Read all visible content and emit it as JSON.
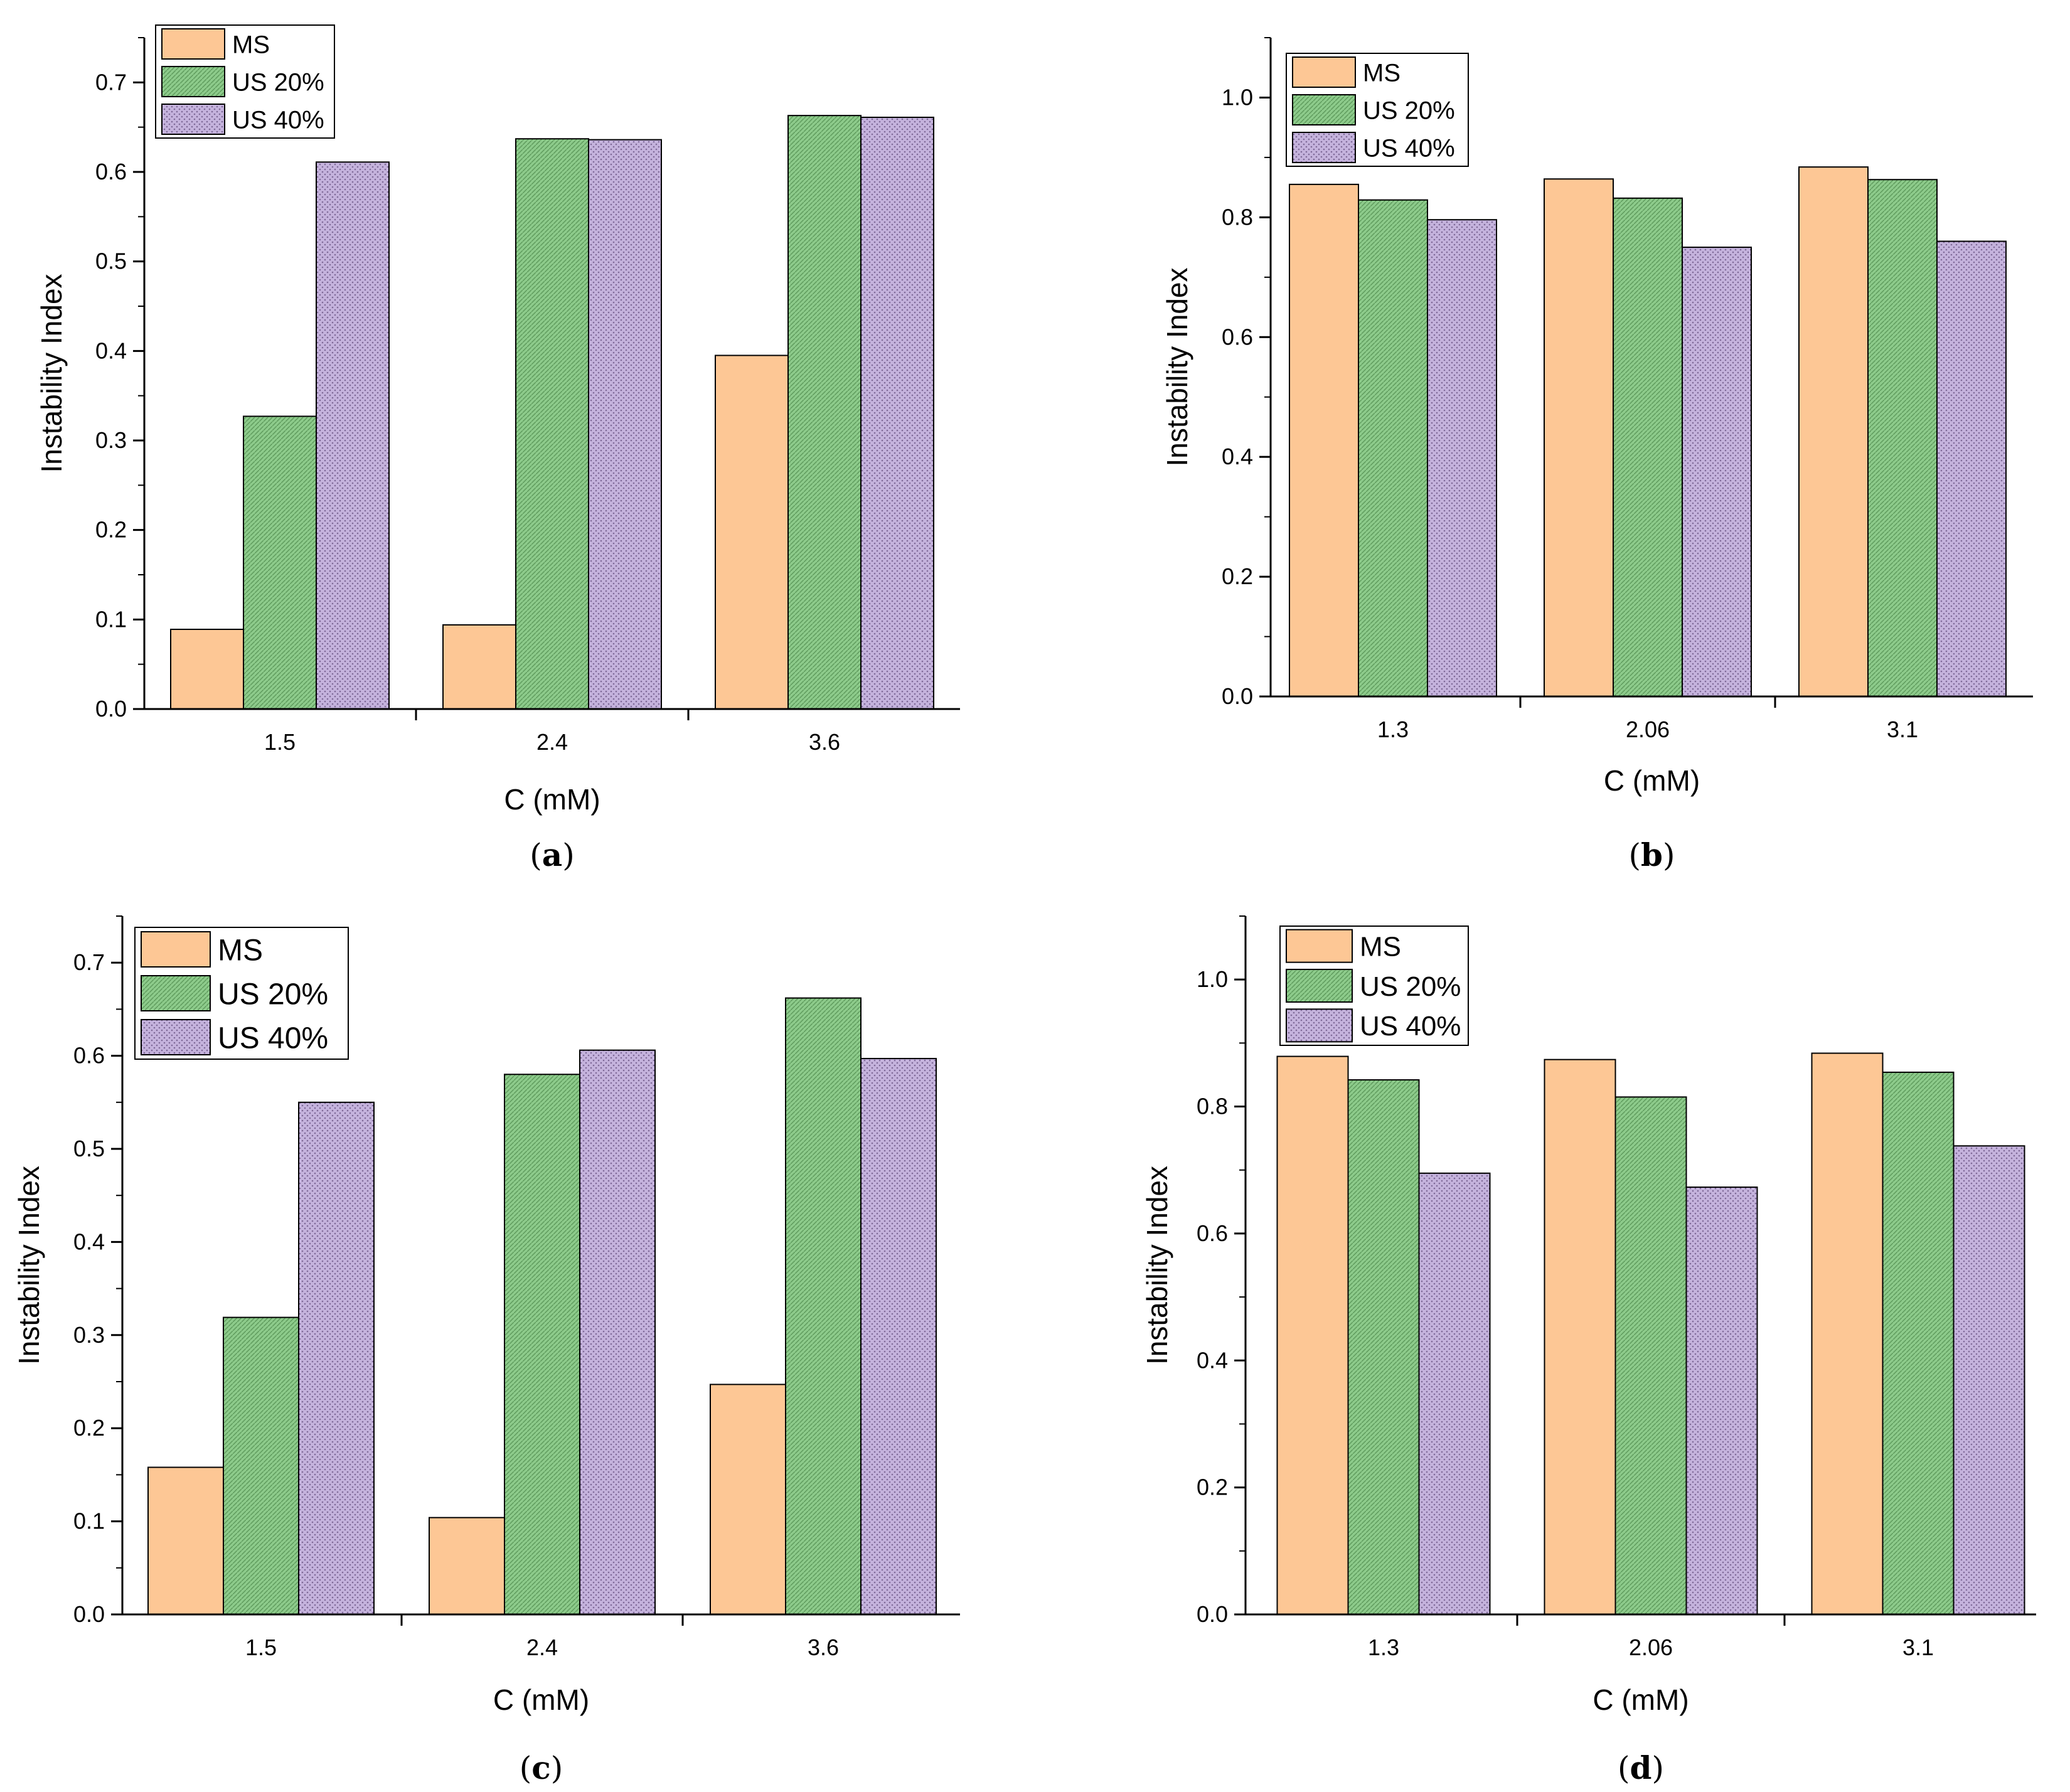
{
  "colors": {
    "MS": "#FDC795",
    "US 20%": "#8DCB8B",
    "US 40%": "#C5B3DD",
    "axis": "#000000"
  },
  "chart_data": [
    {
      "type": "bar",
      "panel_label": "a",
      "categories": [
        "1.5",
        "2.4",
        "3.6"
      ],
      "series": [
        {
          "name": "MS",
          "values": [
            0.089,
            0.094,
            0.395
          ]
        },
        {
          "name": "US 20%",
          "values": [
            0.327,
            0.637,
            0.663
          ]
        },
        {
          "name": "US 40%",
          "values": [
            0.611,
            0.636,
            0.661
          ]
        }
      ],
      "xlabel": "C (mM)",
      "ylabel": "Instability Index",
      "ylim": [
        0,
        0.75
      ],
      "yticks": [
        "0.0",
        "0.1",
        "0.2",
        "0.3",
        "0.4",
        "0.5",
        "0.6",
        "0.7"
      ],
      "grid": false,
      "legend_position": "top-left"
    },
    {
      "type": "bar",
      "panel_label": "b",
      "categories": [
        "1.3",
        "2.06",
        "3.1"
      ],
      "series": [
        {
          "name": "MS",
          "values": [
            0.855,
            0.864,
            0.884
          ]
        },
        {
          "name": "US 20%",
          "values": [
            0.829,
            0.832,
            0.863
          ]
        },
        {
          "name": "US 40%",
          "values": [
            0.796,
            0.75,
            0.76
          ]
        }
      ],
      "xlabel": "C (mM)",
      "ylabel": "Instability Index",
      "ylim": [
        0,
        1.1
      ],
      "yticks": [
        "0.0",
        "0.2",
        "0.4",
        "0.6",
        "0.8",
        "1.0"
      ],
      "grid": false,
      "legend_position": "top-left"
    },
    {
      "type": "bar",
      "panel_label": "c",
      "categories": [
        "1.5",
        "2.4",
        "3.6"
      ],
      "series": [
        {
          "name": "MS",
          "values": [
            0.158,
            0.104,
            0.247
          ]
        },
        {
          "name": "US 20%",
          "values": [
            0.319,
            0.58,
            0.662
          ]
        },
        {
          "name": "US 40%",
          "values": [
            0.55,
            0.606,
            0.597
          ]
        }
      ],
      "xlabel": "C (mM)",
      "ylabel": "Instability Index",
      "ylim": [
        0,
        0.75
      ],
      "yticks": [
        "0.0",
        "0.1",
        "0.2",
        "0.3",
        "0.4",
        "0.5",
        "0.6",
        "0.7"
      ],
      "grid": false,
      "legend_position": "top-left"
    },
    {
      "type": "bar",
      "panel_label": "d",
      "categories": [
        "1.3",
        "2.06",
        "3.1"
      ],
      "series": [
        {
          "name": "MS",
          "values": [
            0.879,
            0.874,
            0.884
          ]
        },
        {
          "name": "US 20%",
          "values": [
            0.842,
            0.815,
            0.854
          ]
        },
        {
          "name": "US 40%",
          "values": [
            0.695,
            0.673,
            0.738
          ]
        }
      ],
      "xlabel": "C (mM)",
      "ylabel": "Instability Index",
      "ylim": [
        0,
        1.1
      ],
      "yticks": [
        "0.0",
        "0.2",
        "0.4",
        "0.6",
        "0.8",
        "1.0"
      ],
      "grid": false,
      "legend_position": "top-left"
    }
  ]
}
